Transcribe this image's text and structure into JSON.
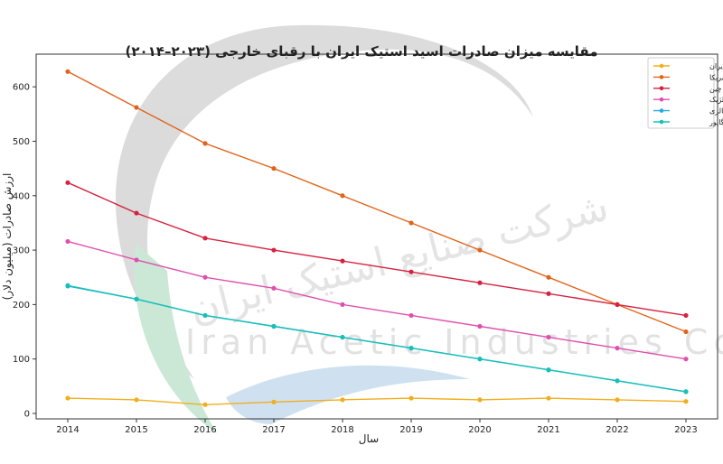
{
  "chart_data": {
    "type": "line",
    "title": "مقایسه میزان صادرات اسید استیک ایران با رقبای خارجی (۲۰۲۳–۲۰۱۴)",
    "xlabel": "سال",
    "ylabel": "ارزش صادرات (میلیون دلار)",
    "x": [
      2014,
      2015,
      2016,
      2017,
      2018,
      2019,
      2020,
      2021,
      2022,
      2023
    ],
    "ylim": [
      -10,
      660
    ],
    "yticks": [
      0,
      100,
      200,
      300,
      400,
      500,
      600
    ],
    "grid": false,
    "legend_position": "top-right",
    "series": [
      {
        "name": "ایران",
        "color": "#f2ae1c",
        "values": [
          28,
          25,
          16,
          21,
          25,
          28,
          25,
          28,
          25,
          22
        ]
      },
      {
        "name": "آمریکا",
        "color": "#e0641b",
        "values": [
          628,
          562,
          496,
          450,
          400,
          350,
          300,
          250,
          200,
          150
        ]
      },
      {
        "name": "چین",
        "color": "#d6213f",
        "values": [
          424,
          368,
          322,
          300,
          280,
          260,
          240,
          220,
          200,
          180
        ]
      },
      {
        "name": "بلژیک",
        "color": "#e04fb0",
        "values": [
          316,
          282,
          250,
          230,
          200,
          180,
          160,
          140,
          120,
          100
        ]
      },
      {
        "name": "مالزی",
        "color": "#2aa8e0",
        "values": [
          234,
          210,
          180,
          160,
          140,
          120,
          100,
          80,
          60,
          40
        ]
      },
      {
        "name": "سنگاپور",
        "color": "#17c1b8",
        "values": [
          235,
          210,
          180,
          160,
          140,
          120,
          100,
          80,
          60,
          40
        ]
      }
    ]
  },
  "watermark": {
    "persian": "شرکت صنایع استیک ایران",
    "latin": "Iran Acetic Industries Co"
  }
}
